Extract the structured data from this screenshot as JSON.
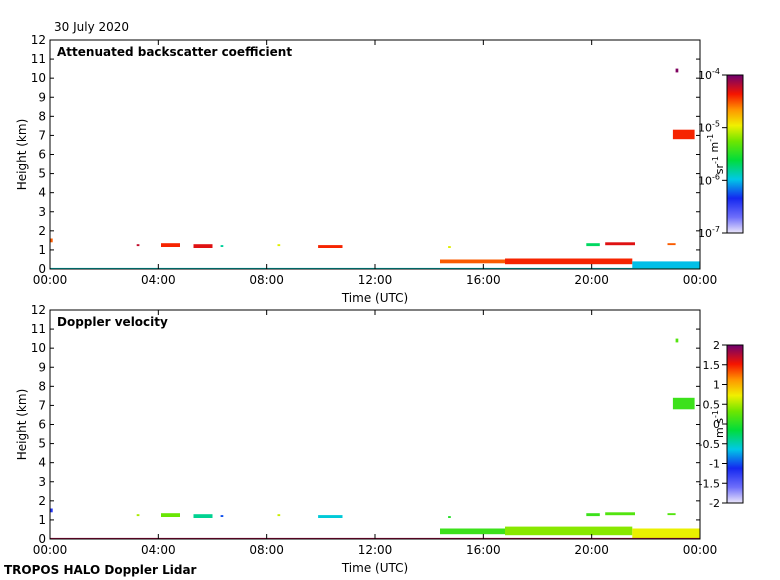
{
  "date_label": "30 July 2020",
  "footer": "TROPOS HALO Doppler Lidar",
  "chart_data": [
    {
      "type": "heatmap",
      "title": "Attenuated backscatter coefficient",
      "xlabel": "Time (UTC)",
      "ylabel": "Height (km)",
      "xlim": [
        0,
        24
      ],
      "ylim": [
        0,
        12
      ],
      "x_ticks": [
        "00:00",
        "04:00",
        "08:00",
        "12:00",
        "16:00",
        "20:00",
        "00:00"
      ],
      "y_ticks": [
        "0",
        "1",
        "2",
        "3",
        "4",
        "5",
        "6",
        "7",
        "8",
        "9",
        "10",
        "11",
        "12"
      ],
      "colorbar": {
        "scale": "log",
        "range": [
          1e-07,
          0.0001
        ],
        "unit_label": "sr-1 m-1",
        "ticks": [
          {
            "base": "10",
            "exp": "-4",
            "value": 0.0001
          },
          {
            "base": "10",
            "exp": "-5",
            "value": 1e-05
          },
          {
            "base": "10",
            "exp": "-6",
            "value": 1e-06
          },
          {
            "base": "10",
            "exp": "-7",
            "value": 1e-07
          }
        ]
      },
      "features": [
        {
          "t": [
            0.0,
            0.1
          ],
          "h": [
            1.4,
            1.6
          ],
          "value": 3e-05
        },
        {
          "t": [
            3.2,
            3.3
          ],
          "h": [
            1.2,
            1.3
          ],
          "value": 6e-05
        },
        {
          "t": [
            4.1,
            4.8
          ],
          "h": [
            1.15,
            1.35
          ],
          "value": 4e-05
        },
        {
          "t": [
            5.3,
            6.0
          ],
          "h": [
            1.1,
            1.3
          ],
          "value": 5e-05
        },
        {
          "t": [
            6.3,
            6.4
          ],
          "h": [
            1.15,
            1.25
          ],
          "value": 1.5e-06
        },
        {
          "t": [
            8.4,
            8.5
          ],
          "h": [
            1.2,
            1.3
          ],
          "value": 1e-05
        },
        {
          "t": [
            9.9,
            10.8
          ],
          "h": [
            1.1,
            1.25
          ],
          "value": 4e-05
        },
        {
          "t": [
            14.7,
            14.8
          ],
          "h": [
            1.1,
            1.2
          ],
          "value": 1e-05
        },
        {
          "t": [
            14.4,
            16.8
          ],
          "h": [
            0.3,
            0.5
          ],
          "value": 3e-05
        },
        {
          "t": [
            16.8,
            21.5
          ],
          "h": [
            0.25,
            0.55
          ],
          "value": 4e-05
        },
        {
          "t": [
            21.5,
            24.0
          ],
          "h": [
            0.05,
            0.4
          ],
          "value": 1e-06
        },
        {
          "t": [
            19.8,
            20.3
          ],
          "h": [
            1.2,
            1.35
          ],
          "value": 2e-06
        },
        {
          "t": [
            20.5,
            21.6
          ],
          "h": [
            1.25,
            1.4
          ],
          "value": 5e-05
        },
        {
          "t": [
            22.8,
            23.1
          ],
          "h": [
            1.25,
            1.35
          ],
          "value": 3e-05
        },
        {
          "t": [
            23.0,
            23.8
          ],
          "h": [
            6.8,
            7.3
          ],
          "value": 4e-05
        },
        {
          "t": [
            23.1,
            23.2
          ],
          "h": [
            10.3,
            10.5
          ],
          "value": 9e-05
        },
        {
          "t": [
            0.0,
            24.0
          ],
          "h": [
            0.0,
            0.06
          ],
          "value": 1.2e-06
        }
      ]
    },
    {
      "type": "heatmap",
      "title": "Doppler velocity",
      "xlabel": "Time (UTC)",
      "ylabel": "Height (km)",
      "xlim": [
        0,
        24
      ],
      "ylim": [
        0,
        12
      ],
      "x_ticks": [
        "00:00",
        "04:00",
        "08:00",
        "12:00",
        "16:00",
        "20:00",
        "00:00"
      ],
      "y_ticks": [
        "0",
        "1",
        "2",
        "3",
        "4",
        "5",
        "6",
        "7",
        "8",
        "9",
        "10",
        "11",
        "12"
      ],
      "colorbar": {
        "scale": "linear",
        "range": [
          -2,
          2
        ],
        "unit_label": "m s-1",
        "ticks": [
          "2",
          "1.5",
          "1",
          "0.5",
          "0",
          "-0.5",
          "-1",
          "-1.5",
          "-2"
        ]
      },
      "features": [
        {
          "t": [
            0.0,
            0.1
          ],
          "h": [
            1.4,
            1.6
          ],
          "value": -1.2
        },
        {
          "t": [
            3.2,
            3.3
          ],
          "h": [
            1.2,
            1.3
          ],
          "value": 0.5
        },
        {
          "t": [
            4.1,
            4.8
          ],
          "h": [
            1.15,
            1.35
          ],
          "value": 0.3
        },
        {
          "t": [
            5.3,
            6.0
          ],
          "h": [
            1.1,
            1.3
          ],
          "value": -0.4
        },
        {
          "t": [
            6.3,
            6.4
          ],
          "h": [
            1.15,
            1.25
          ],
          "value": -1.0
        },
        {
          "t": [
            8.4,
            8.5
          ],
          "h": [
            1.2,
            1.3
          ],
          "value": 0.6
        },
        {
          "t": [
            9.9,
            10.8
          ],
          "h": [
            1.1,
            1.25
          ],
          "value": -0.6
        },
        {
          "t": [
            14.7,
            14.8
          ],
          "h": [
            1.1,
            1.2
          ],
          "value": 0.0
        },
        {
          "t": [
            14.4,
            16.8
          ],
          "h": [
            0.25,
            0.55
          ],
          "value": 0.1
        },
        {
          "t": [
            16.8,
            21.5
          ],
          "h": [
            0.2,
            0.65
          ],
          "value": 0.4
        },
        {
          "t": [
            21.5,
            24.0
          ],
          "h": [
            0.05,
            0.55
          ],
          "value": 0.7
        },
        {
          "t": [
            19.8,
            20.3
          ],
          "h": [
            1.2,
            1.35
          ],
          "value": 0.1
        },
        {
          "t": [
            20.5,
            21.6
          ],
          "h": [
            1.25,
            1.4
          ],
          "value": 0.2
        },
        {
          "t": [
            22.8,
            23.1
          ],
          "h": [
            1.25,
            1.35
          ],
          "value": 0.2
        },
        {
          "t": [
            23.0,
            23.8
          ],
          "h": [
            6.8,
            7.4
          ],
          "value": 0.1
        },
        {
          "t": [
            23.1,
            23.2
          ],
          "h": [
            10.3,
            10.5
          ],
          "value": 0.2
        },
        {
          "t": [
            0.0,
            24.0
          ],
          "h": [
            0.0,
            0.06
          ],
          "value": 1.8
        }
      ]
    }
  ]
}
